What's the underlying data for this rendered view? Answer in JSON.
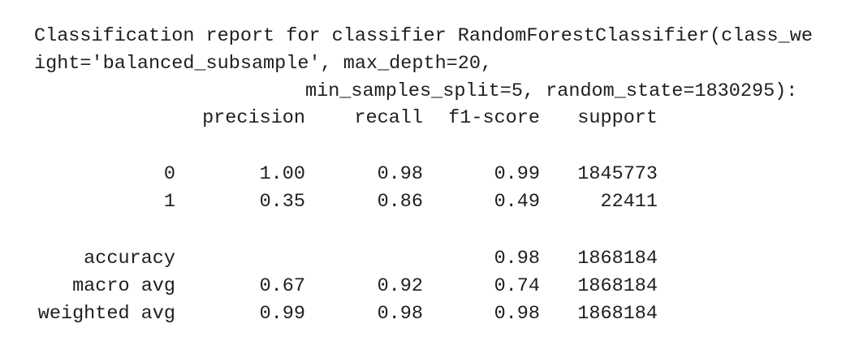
{
  "header": {
    "lines": [
      "Classification report for classifier RandomForestClassifier(class_we",
      "ight='balanced_subsample', max_depth=20,",
      "min_samples_split=5, random_state=1830295):"
    ]
  },
  "table": {
    "columns": [
      "precision",
      "recall",
      "f1-score",
      "support"
    ],
    "rows": [
      {
        "label": "0",
        "cells": [
          "1.00",
          "0.98",
          "0.99",
          "1845773"
        ]
      },
      {
        "label": "1",
        "cells": [
          "0.35",
          "0.86",
          "0.49",
          "22411"
        ]
      },
      {
        "label": "accuracy",
        "cells": [
          null,
          null,
          "0.98",
          "1868184"
        ]
      },
      {
        "label": "macro avg",
        "cells": [
          "0.67",
          "0.92",
          "0.74",
          "1868184"
        ]
      },
      {
        "label": "weighted avg",
        "cells": [
          "0.99",
          "0.98",
          "0.98",
          "1868184"
        ]
      }
    ]
  }
}
